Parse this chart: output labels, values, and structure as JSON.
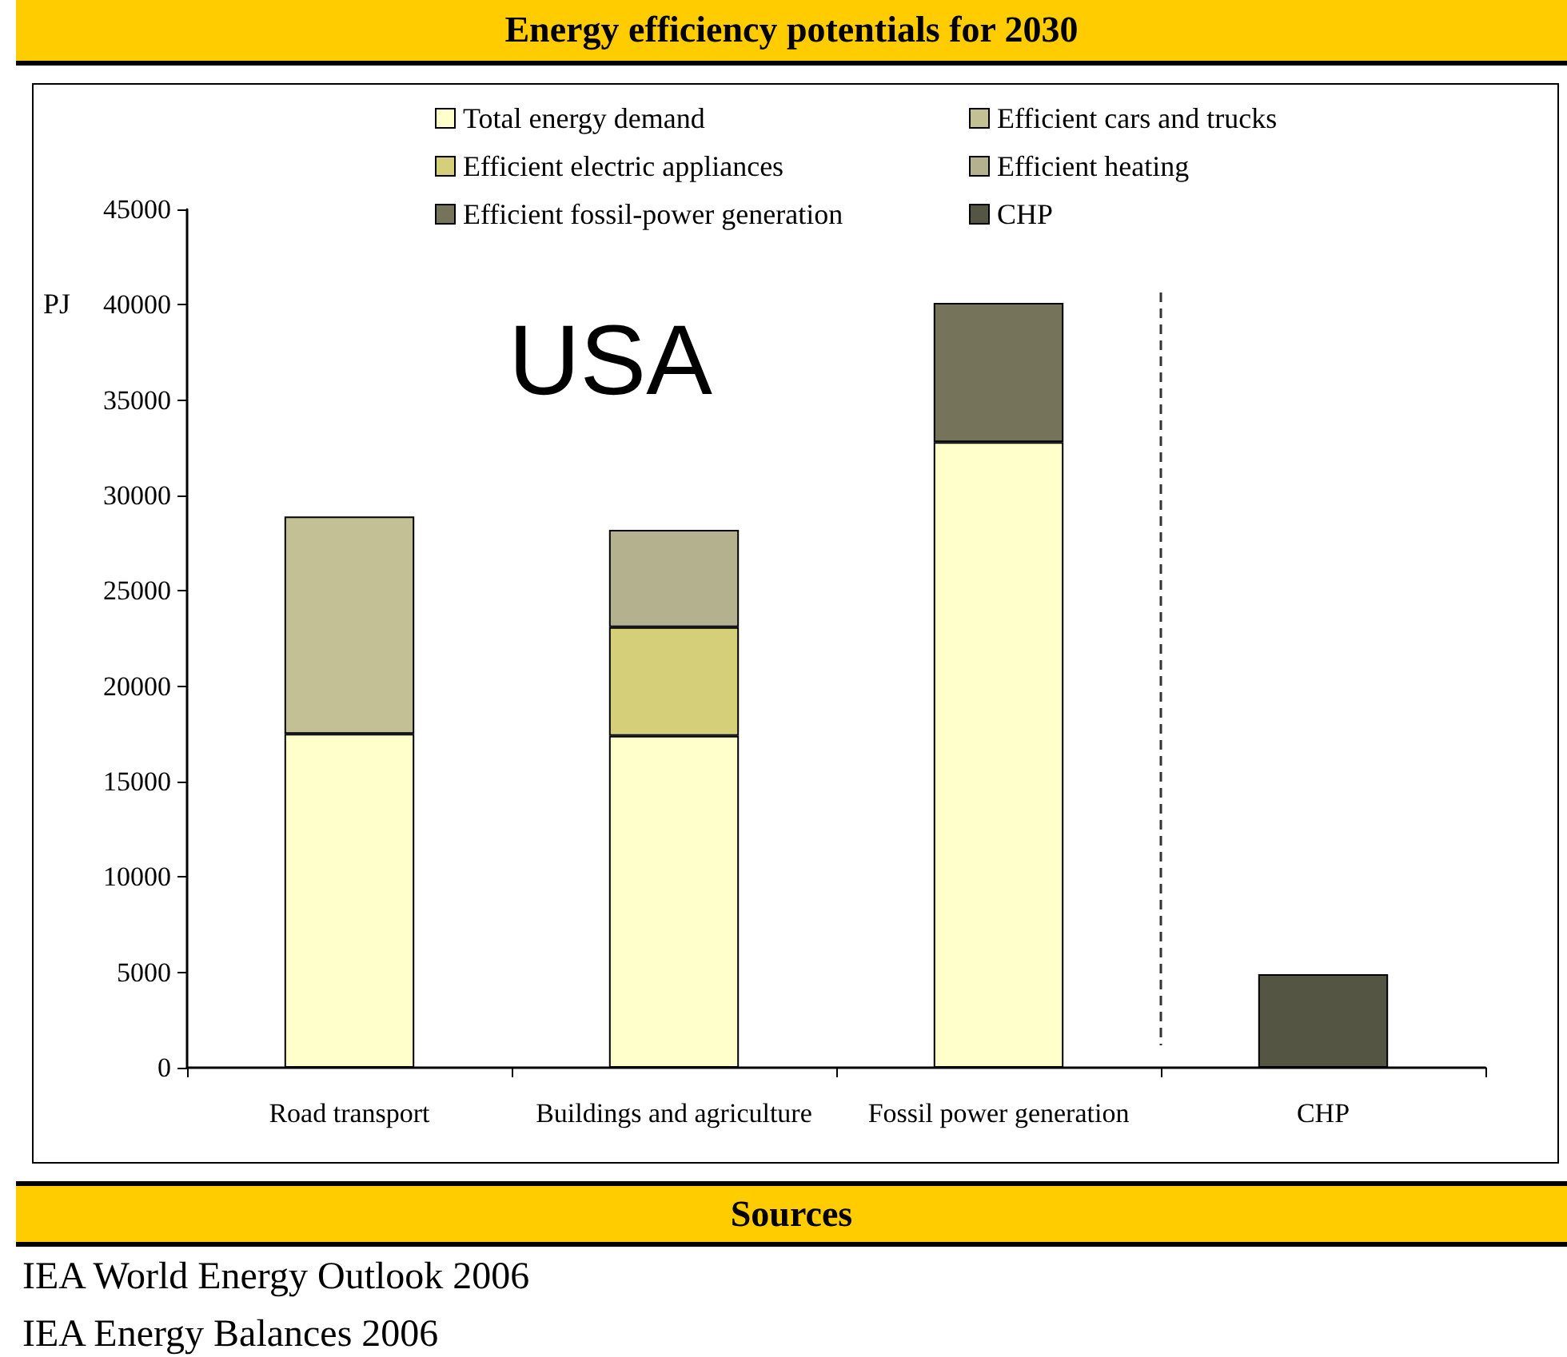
{
  "chart_data": {
    "type": "bar",
    "title": "Energy efficiency potentials for 2030",
    "ylabel": "PJ",
    "categories": [
      "Road transport",
      "Buildings and agriculture",
      "Fossil power generation",
      "CHP"
    ],
    "series": [
      {
        "name": "Total energy demand",
        "color": "#ffffcc",
        "values": [
          17500,
          17400,
          32800,
          null
        ]
      },
      {
        "name": "Efficient cars and trucks",
        "color": "#c2c094",
        "values": [
          11400,
          null,
          null,
          null
        ]
      },
      {
        "name": "Efficient electric appliances",
        "color": "#d4cf78",
        "values": [
          null,
          5700,
          null,
          null
        ]
      },
      {
        "name": "Efficient heating",
        "color": "#b3b18e",
        "values": [
          null,
          5100,
          null,
          null
        ]
      },
      {
        "name": "Efficient fossil-power generation",
        "color": "#75735a",
        "values": [
          null,
          null,
          7300,
          null
        ]
      },
      {
        "name": "CHP",
        "color": "#555544",
        "values": [
          null,
          null,
          null,
          4900
        ]
      }
    ],
    "stacked": true,
    "ylim": [
      0,
      45000
    ],
    "yticks": [
      0,
      5000,
      10000,
      15000,
      20000,
      25000,
      30000,
      35000,
      40000,
      45000
    ],
    "grid": false,
    "legend": "top",
    "annotations": [
      "USA",
      "Sources",
      "IEA World Energy Outlook 2006",
      "IEA Energy Balances 2006"
    ]
  }
}
